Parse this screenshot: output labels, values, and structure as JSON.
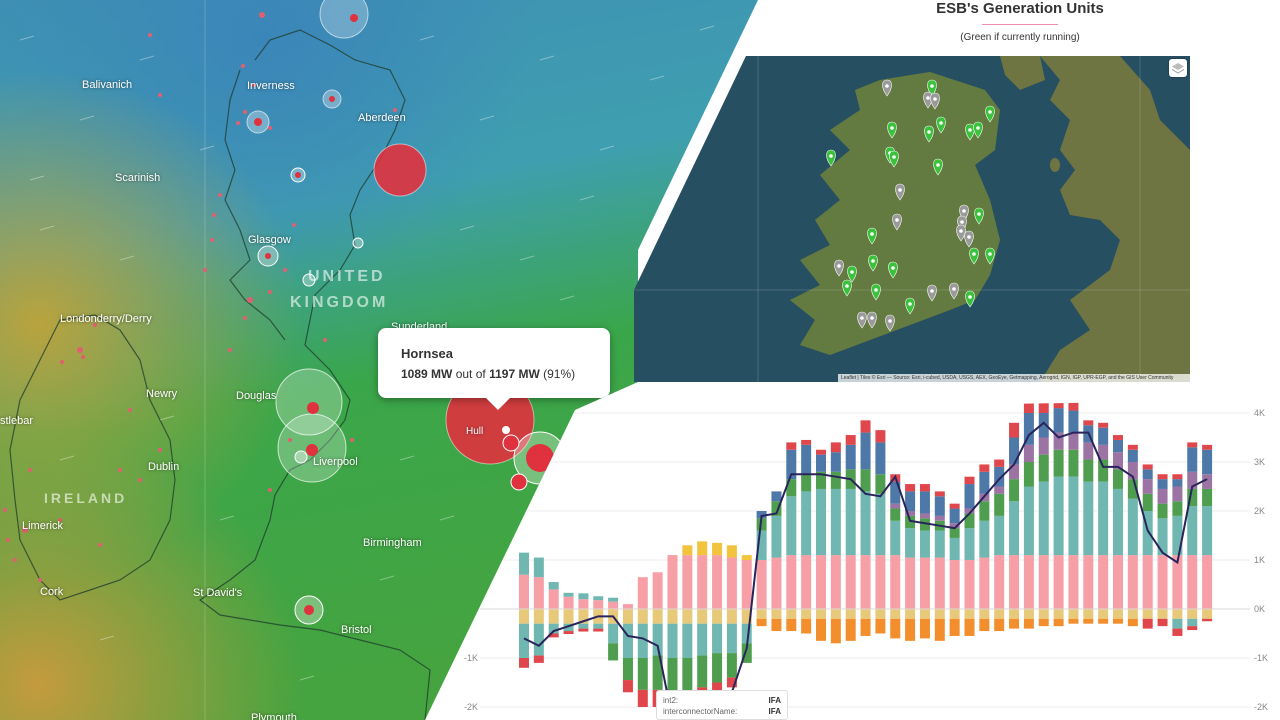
{
  "uk_map": {
    "cities": [
      {
        "name": "Inverness"
      },
      {
        "name": "Aberdeen"
      },
      {
        "name": "Balivanich"
      },
      {
        "name": "Scarinish"
      },
      {
        "name": "Glasgow"
      },
      {
        "name": "Londonderry/Derry"
      },
      {
        "name": "Newry"
      },
      {
        "name": "Douglas"
      },
      {
        "name": "Castlebar",
        "display": "stlebar"
      },
      {
        "name": "Dublin"
      },
      {
        "name": "Liverpool"
      },
      {
        "name": "Limerick"
      },
      {
        "name": "Cork"
      },
      {
        "name": "Birmingham"
      },
      {
        "name": "St David's"
      },
      {
        "name": "Bristol"
      },
      {
        "name": "Hull"
      },
      {
        "name": "Sunderland"
      },
      {
        "name": "Plymouth"
      }
    ],
    "country_labels": {
      "uk_line1": "UNITED",
      "uk_line2": "KINGDOM",
      "ireland": "IRELAND"
    },
    "tooltip": {
      "name": "Hornsea",
      "output": "1089 MW",
      "out_of": "out of",
      "capacity": "1197 MW",
      "percent": "(91%)"
    },
    "colors": {
      "sea_blue": "#3e8fb3",
      "land_green": "#3aa64a",
      "warm": "#c9a03a",
      "plant_red": "#e0323e"
    }
  },
  "ireland_panel": {
    "title": "ESB's Generation Units",
    "subtitle": "(Green if currently running)",
    "attribution": "Leaflet | Tiles © Esri — Source: Esri, i-cubed, USDA, USGS, AEX, GeoEye, Getmapping, Aerogrid, IGN, IGP, UPR-EGP, and the GIS User Community",
    "marker_colors": {
      "running": "#3cc13c",
      "stopped": "#9a9a9a"
    },
    "layers_icon": "layers-icon"
  },
  "chart_data": {
    "type": "bar",
    "title": "",
    "xlabel": "",
    "ylabel": "",
    "ylim": [
      -2300,
      4100
    ],
    "y_ticks": [
      -2000,
      -1000,
      0,
      1000,
      2000,
      3000,
      4000
    ],
    "y_tick_labels": [
      "-2K",
      "-1K",
      "0K",
      "1K",
      "2K",
      "3K",
      "4K"
    ],
    "series_colors": [
      "#f79fa6",
      "#6fb7b0",
      "#4f9e4f",
      "#9c74a4",
      "#f2c33c",
      "#4d78a8",
      "#e0474c",
      "#f28e2b"
    ],
    "positive_stacks": [
      [
        700,
        450,
        0,
        0,
        0,
        0,
        0
      ],
      [
        650,
        400,
        0,
        0,
        0,
        0,
        0
      ],
      [
        400,
        150,
        0,
        0,
        0,
        0,
        0
      ],
      [
        250,
        80,
        0,
        0,
        0,
        0,
        0
      ],
      [
        200,
        120,
        0,
        0,
        0,
        0,
        0
      ],
      [
        180,
        80,
        0,
        0,
        0,
        0,
        0
      ],
      [
        150,
        80,
        0,
        0,
        0,
        0,
        0
      ],
      [
        100,
        0,
        0,
        0,
        0,
        0,
        0
      ],
      [
        650,
        0,
        0,
        0,
        0,
        0,
        0
      ],
      [
        750,
        0,
        0,
        0,
        0,
        0,
        0
      ],
      [
        1100,
        0,
        0,
        0,
        0,
        0,
        0
      ],
      [
        1100,
        0,
        0,
        0,
        200,
        0,
        0
      ],
      [
        1100,
        0,
        0,
        0,
        280,
        0,
        0
      ],
      [
        1100,
        0,
        0,
        0,
        250,
        0,
        0
      ],
      [
        1050,
        0,
        0,
        0,
        250,
        0,
        0
      ],
      [
        1000,
        0,
        0,
        0,
        100,
        0,
        0
      ],
      [
        1000,
        600,
        250,
        0,
        0,
        150,
        0
      ],
      [
        1050,
        850,
        300,
        0,
        0,
        200,
        0
      ],
      [
        1100,
        1200,
        350,
        0,
        0,
        600,
        150
      ],
      [
        1100,
        1300,
        350,
        0,
        0,
        600,
        100
      ],
      [
        1100,
        1350,
        350,
        0,
        0,
        350,
        100
      ],
      [
        1100,
        1350,
        350,
        0,
        0,
        400,
        200
      ],
      [
        1100,
        1350,
        400,
        0,
        0,
        500,
        200
      ],
      [
        1100,
        1300,
        450,
        0,
        0,
        750,
        250
      ],
      [
        1100,
        1250,
        400,
        0,
        0,
        650,
        250
      ],
      [
        1100,
        700,
        250,
        100,
        0,
        450,
        150
      ],
      [
        1050,
        600,
        250,
        100,
        0,
        400,
        150
      ],
      [
        1050,
        550,
        250,
        100,
        0,
        450,
        150
      ],
      [
        1050,
        550,
        200,
        100,
        0,
        400,
        100
      ],
      [
        1000,
        450,
        200,
        100,
        0,
        300,
        100
      ],
      [
        1000,
        650,
        300,
        100,
        0,
        500,
        150
      ],
      [
        1050,
        750,
        400,
        150,
        0,
        450,
        150
      ],
      [
        1100,
        800,
        450,
        150,
        0,
        400,
        150
      ],
      [
        1100,
        1100,
        450,
        300,
        0,
        550,
        300
      ],
      [
        1100,
        1400,
        500,
        350,
        0,
        650,
        400
      ],
      [
        1100,
        1500,
        550,
        350,
        0,
        500,
        300
      ],
      [
        1100,
        1600,
        550,
        350,
        0,
        500,
        300
      ],
      [
        1100,
        1600,
        550,
        350,
        0,
        450,
        200
      ],
      [
        1100,
        1500,
        450,
        350,
        0,
        350,
        100
      ],
      [
        1100,
        1500,
        450,
        300,
        0,
        350,
        100
      ],
      [
        1100,
        1350,
        400,
        350,
        0,
        250,
        100
      ],
      [
        1100,
        1150,
        400,
        350,
        0,
        250,
        100
      ],
      [
        1100,
        900,
        350,
        300,
        0,
        200,
        100
      ],
      [
        1100,
        750,
        300,
        300,
        0,
        200,
        100
      ],
      [
        1100,
        800,
        300,
        300,
        0,
        150,
        100
      ],
      [
        1100,
        1000,
        350,
        350,
        0,
        500,
        100
      ],
      [
        1100,
        1000,
        350,
        300,
        0,
        500,
        100
      ]
    ],
    "negative_stacks": [
      [
        -300,
        -700,
        0,
        0,
        -200
      ],
      [
        -300,
        -650,
        0,
        0,
        -150
      ],
      [
        -300,
        -200,
        0,
        0,
        -80
      ],
      [
        -300,
        -150,
        0,
        0,
        -60
      ],
      [
        -300,
        -100,
        0,
        0,
        -60
      ],
      [
        -300,
        -100,
        0,
        0,
        -60
      ],
      [
        -300,
        -400,
        -350,
        0,
        0
      ],
      [
        -300,
        -700,
        -450,
        0,
        -250
      ],
      [
        -300,
        -700,
        -650,
        0,
        -350
      ],
      [
        -300,
        -650,
        -700,
        0,
        -350
      ],
      [
        -300,
        -700,
        -700,
        0,
        -400
      ],
      [
        -300,
        -700,
        -700,
        0,
        -300
      ],
      [
        -300,
        -650,
        -650,
        0,
        -300
      ],
      [
        -300,
        -600,
        -600,
        0,
        -250
      ],
      [
        -300,
        -600,
        -500,
        0,
        -200
      ],
      [
        -300,
        -400,
        -400,
        0,
        0
      ],
      [
        -200,
        0,
        0,
        -150,
        0
      ],
      [
        -200,
        0,
        0,
        -250,
        0
      ],
      [
        -200,
        0,
        0,
        -250,
        0
      ],
      [
        -200,
        0,
        0,
        -300,
        0
      ],
      [
        -200,
        0,
        0,
        -450,
        0
      ],
      [
        -200,
        0,
        0,
        -500,
        0
      ],
      [
        -200,
        0,
        0,
        -450,
        0
      ],
      [
        -200,
        0,
        0,
        -350,
        0
      ],
      [
        -200,
        0,
        0,
        -300,
        0
      ],
      [
        -200,
        0,
        0,
        -400,
        0
      ],
      [
        -200,
        0,
        0,
        -450,
        0
      ],
      [
        -200,
        0,
        0,
        -400,
        0
      ],
      [
        -200,
        0,
        0,
        -450,
        0
      ],
      [
        -200,
        0,
        0,
        -350,
        0
      ],
      [
        -200,
        0,
        0,
        -350,
        0
      ],
      [
        -200,
        0,
        0,
        -250,
        0
      ],
      [
        -200,
        0,
        0,
        -250,
        0
      ],
      [
        -200,
        0,
        0,
        -200,
        0
      ],
      [
        -200,
        0,
        0,
        -200,
        0
      ],
      [
        -200,
        0,
        0,
        -150,
        0
      ],
      [
        -200,
        0,
        0,
        -150,
        0
      ],
      [
        -200,
        0,
        0,
        -100,
        0
      ],
      [
        -200,
        0,
        0,
        -100,
        0
      ],
      [
        -200,
        0,
        0,
        -100,
        0
      ],
      [
        -200,
        0,
        0,
        -100,
        0
      ],
      [
        -200,
        0,
        0,
        -150,
        0
      ],
      [
        -200,
        0,
        0,
        0,
        -200
      ],
      [
        -200,
        0,
        0,
        0,
        -150
      ],
      [
        -200,
        -200,
        0,
        0,
        -150
      ],
      [
        -200,
        -150,
        0,
        0,
        -80
      ],
      [
        -200,
        0,
        0,
        0,
        -50
      ]
    ],
    "negative_colors": [
      "#e8c97a",
      "#6fb7b0",
      "#4f9e4f",
      "#f28e2b",
      "#e0474c"
    ],
    "net_line": [
      -600,
      -750,
      -450,
      -350,
      -250,
      -150,
      -150,
      -550,
      -600,
      -750,
      -2250,
      -2350,
      -2200,
      -2050,
      -1700,
      -800,
      1900,
      1950,
      2750,
      2750,
      2750,
      2700,
      2650,
      2350,
      2300,
      2700,
      1800,
      1750,
      1700,
      1650,
      1950,
      2300,
      2650,
      2950,
      3550,
      3800,
      3500,
      3600,
      3600,
      2900,
      2900,
      2700,
      1600,
      1150,
      950,
      2500,
      2650
    ],
    "line_color": "#2a245c",
    "hover_label": {
      "row1_key": "int2:",
      "row1_val": "IFA",
      "row2_key": "interconnectorName:",
      "row2_val": "IFA"
    }
  }
}
